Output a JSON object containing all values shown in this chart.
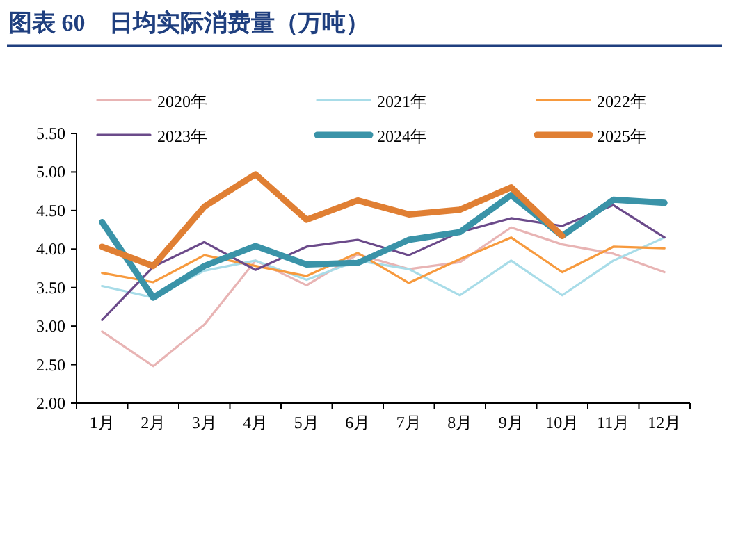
{
  "chart_data": {
    "type": "line",
    "title": "图表 60　日均实际消费量（万吨）",
    "categories": [
      "1月",
      "2月",
      "3月",
      "4月",
      "5月",
      "6月",
      "7月",
      "8月",
      "9月",
      "10月",
      "11月",
      "12月"
    ],
    "series": [
      {
        "name": "2020年",
        "color": "#e8b4b4",
        "values": [
          2.93,
          2.48,
          3.02,
          3.85,
          3.53,
          3.93,
          3.74,
          3.83,
          4.28,
          4.06,
          3.94,
          3.7
        ]
      },
      {
        "name": "2021年",
        "color": "#a8dce8",
        "values": [
          3.52,
          3.37,
          3.72,
          3.85,
          3.6,
          3.85,
          3.74,
          3.4,
          3.85,
          3.4,
          3.85,
          4.15
        ]
      },
      {
        "name": "2022年",
        "color": "#f79a3e",
        "values": [
          3.69,
          3.57,
          3.92,
          3.78,
          3.65,
          3.95,
          3.56,
          3.87,
          4.15,
          3.7,
          4.03,
          4.01
        ]
      },
      {
        "name": "2023年",
        "color": "#6b4a8a",
        "values": [
          3.08,
          3.77,
          4.09,
          3.73,
          4.03,
          4.12,
          3.92,
          4.22,
          4.4,
          4.3,
          4.57,
          4.15
        ]
      },
      {
        "name": "2024年",
        "color": "#3a93a8",
        "values": [
          4.35,
          3.37,
          3.78,
          4.04,
          3.8,
          3.82,
          4.12,
          4.22,
          4.7,
          4.17,
          4.64,
          4.6
        ]
      },
      {
        "name": "2025年",
        "color": "#e07f33",
        "values": [
          4.03,
          3.78,
          4.55,
          4.97,
          4.38,
          4.63,
          4.45,
          4.51,
          4.8,
          4.17,
          null,
          null
        ]
      }
    ],
    "ylim": [
      2,
      5.5
    ],
    "yticks": [
      {
        "value": 2,
        "label": "2.00"
      },
      {
        "value": 2.5,
        "label": "2.50"
      },
      {
        "value": 3,
        "label": "3.00"
      },
      {
        "value": 3.5,
        "label": "3.50"
      },
      {
        "value": 4,
        "label": "4.00"
      },
      {
        "value": 4.5,
        "label": "4.50"
      },
      {
        "value": 5,
        "label": "5.00"
      },
      {
        "value": 5.5,
        "label": "5.50"
      }
    ],
    "legend": "top",
    "grid": false,
    "marker": "none",
    "line_style": "solid"
  }
}
